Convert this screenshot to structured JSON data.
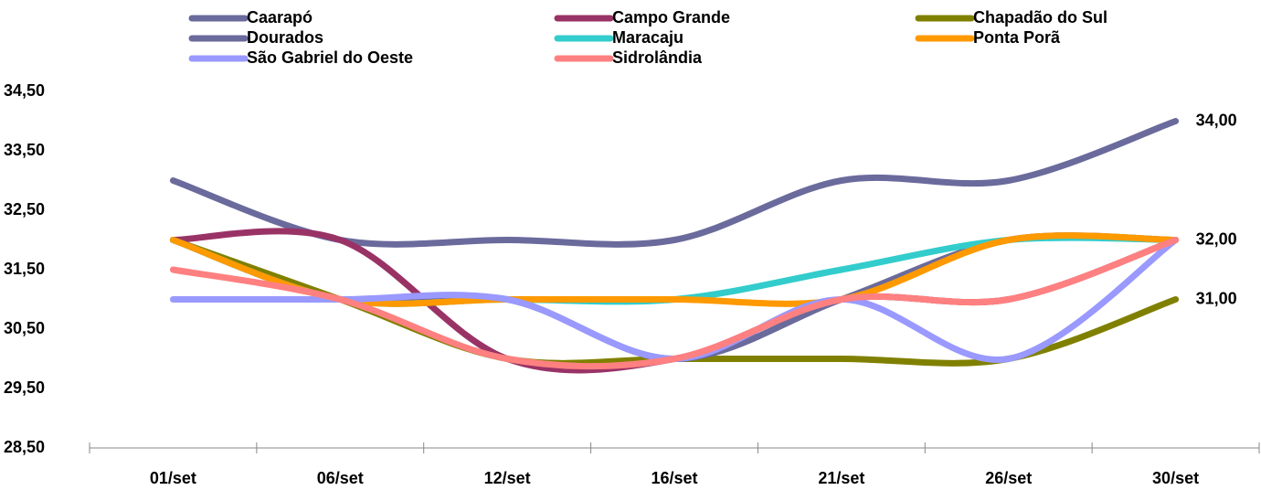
{
  "chart_data": {
    "type": "line",
    "categories": [
      "01/set",
      "06/set",
      "12/set",
      "16/set",
      "21/set",
      "26/set",
      "30/set"
    ],
    "series": [
      {
        "name": "Caarapó",
        "color": "#6a6a9c",
        "values": [
          33,
          32,
          32,
          32,
          33,
          33,
          34
        ],
        "value_labels": [
          null,
          null,
          null,
          null,
          null,
          null,
          "34,00"
        ]
      },
      {
        "name": "Campo Grande",
        "color": "#993366",
        "values": [
          32,
          32,
          30,
          30,
          31,
          31,
          32
        ]
      },
      {
        "name": "Chapadão do Sul",
        "color": "#808000",
        "values": [
          32,
          31,
          30,
          30,
          30,
          30,
          31
        ],
        "value_labels": [
          null,
          null,
          null,
          null,
          null,
          null,
          "31,00"
        ]
      },
      {
        "name": "Dourados",
        "color": "#6a6a9c",
        "values": [
          32,
          31,
          31,
          30,
          31,
          32,
          32
        ]
      },
      {
        "name": "Maracaju",
        "color": "#33cccc",
        "values": [
          32,
          31,
          31,
          31,
          31.5,
          32,
          32
        ]
      },
      {
        "name": "Ponta Porã",
        "color": "#ff9900",
        "values": [
          32,
          31,
          31,
          31,
          31,
          32,
          32
        ]
      },
      {
        "name": "São Gabriel do Oeste",
        "color": "#9999ff",
        "values": [
          31,
          31,
          31,
          30,
          31,
          30,
          32
        ]
      },
      {
        "name": "Sidrolândia",
        "color": "#ff8080",
        "values": [
          31.5,
          31,
          30,
          30,
          31,
          31,
          32
        ],
        "value_labels": [
          null,
          null,
          null,
          null,
          null,
          null,
          "32,00"
        ]
      }
    ],
    "ylim": [
      28.5,
      34.5
    ],
    "yticks": [
      {
        "value": 28.5,
        "label": "28,50"
      },
      {
        "value": 29.5,
        "label": "29,50"
      },
      {
        "value": 30.5,
        "label": "30,50"
      },
      {
        "value": 31.5,
        "label": "31,50"
      },
      {
        "value": 32.5,
        "label": "32,50"
      },
      {
        "value": 33.5,
        "label": "33,50"
      },
      {
        "value": 34.5,
        "label": "34,50"
      }
    ],
    "smooth": true,
    "grid": false
  }
}
